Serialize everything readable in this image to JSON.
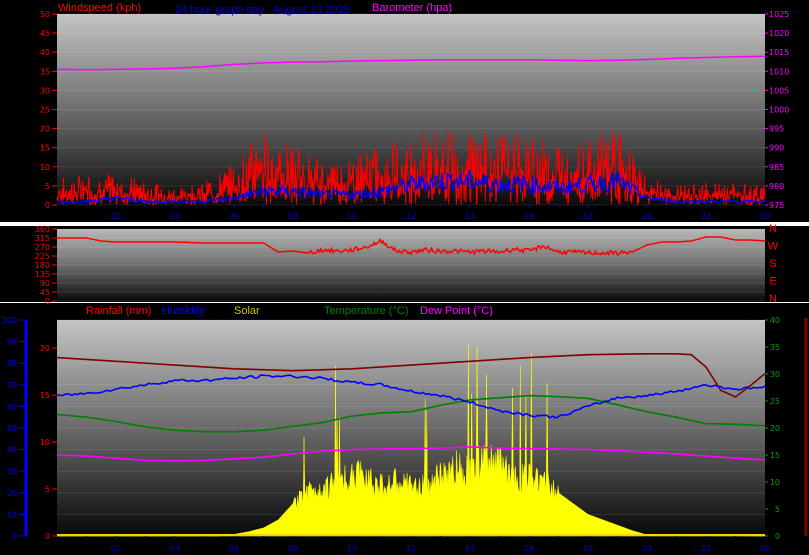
{
  "header": {
    "windspeed_label": "Windspeed (kph)",
    "title": "24 hour graph day : August 13 2025",
    "barometer_label": "Barometer (hpa)"
  },
  "bottom_legend": {
    "rainfall": "Rainfall (mm)",
    "humidity": "Humidity",
    "solar": "Solar",
    "temperature": "Temperature (°C)",
    "dewpoint": "Dew Point (°C)"
  },
  "colors": {
    "wind": "#ff0000",
    "gust": "#ff0000",
    "barometer": "#ff00ff",
    "direction": "#ff0000",
    "humidity": "#0000ff",
    "solar": "#ffff00",
    "temperature": "#008000",
    "dewpoint": "#ff00ff",
    "rainfall": "#ff0000",
    "maroon": "#800000",
    "title": "#0000cc"
  },
  "chart_data": [
    {
      "type": "line",
      "title": "24 hour graph day : August 13 2025",
      "x_ticks": [
        "02",
        "04",
        "06",
        "08",
        "10",
        "12",
        "14",
        "16",
        "18",
        "20",
        "22",
        "00"
      ],
      "xlim": [
        0,
        24
      ],
      "y_left_label": "Windspeed (kph)",
      "y_left_ticks": [
        "0",
        "5",
        "10",
        "15",
        "20",
        "25",
        "30",
        "35",
        "40",
        "45",
        "50"
      ],
      "ylim_left": [
        0,
        50
      ],
      "y_right_label": "Barometer (hpa)",
      "y_right_ticks": [
        "975",
        "980",
        "985",
        "990",
        "995",
        "1000",
        "1005",
        "1010",
        "1015",
        "1020",
        "1025"
      ],
      "ylim_right": [
        975,
        1025
      ],
      "series": [
        {
          "name": "Barometer (hpa)",
          "axis": "right",
          "x": [
            0,
            1,
            2,
            3,
            4,
            5,
            6,
            7,
            8,
            9,
            10,
            11,
            12,
            13,
            14,
            15,
            16,
            17,
            18,
            19,
            20,
            21,
            22,
            23,
            24
          ],
          "values": [
            1010.5,
            1010.4,
            1010.5,
            1010.6,
            1010.8,
            1011.2,
            1011.8,
            1012.2,
            1012.4,
            1012.5,
            1012.7,
            1012.8,
            1012.9,
            1013,
            1013,
            1013,
            1013,
            1012.9,
            1012.8,
            1012.9,
            1013.1,
            1013.4,
            1013.6,
            1013.8,
            1013.9
          ]
        },
        {
          "name": "Windspeed (kph)",
          "axis": "left",
          "x": [
            0,
            1,
            2,
            3,
            4,
            5,
            6,
            7,
            8,
            9,
            10,
            11,
            12,
            13,
            14,
            15,
            16,
            17,
            18,
            19,
            20,
            21,
            22,
            23,
            24
          ],
          "values": [
            1,
            1,
            2,
            1,
            1,
            1,
            2,
            4,
            4,
            3,
            3,
            4,
            6,
            7,
            7,
            6,
            6,
            5,
            6,
            7,
            2,
            1,
            1,
            1,
            1
          ]
        },
        {
          "name": "Wind gust",
          "axis": "left",
          "x": [
            0,
            1,
            2,
            3,
            4,
            5,
            6,
            7,
            8,
            9,
            10,
            11,
            12,
            13,
            14,
            15,
            16,
            17,
            18,
            19,
            20,
            21,
            22,
            23,
            24
          ],
          "values": [
            7,
            8,
            9,
            6,
            5,
            6,
            11,
            20,
            16,
            12,
            13,
            16,
            19,
            20,
            19,
            19,
            18,
            17,
            18,
            20,
            7,
            5,
            6,
            6,
            5
          ]
        }
      ]
    },
    {
      "type": "line",
      "x_ticks": [
        "02",
        "04",
        "06",
        "08",
        "10",
        "12",
        "14",
        "16",
        "18",
        "20",
        "22",
        "00"
      ],
      "xlim": [
        0,
        24
      ],
      "y_ticks": [
        "0",
        "45",
        "90",
        "135",
        "180",
        "225",
        "270",
        "315",
        "360"
      ],
      "ylim": [
        0,
        360
      ],
      "direction_labels": [
        "N",
        "W",
        "S",
        "E",
        "N"
      ],
      "series": [
        {
          "name": "Wind direction",
          "x": [
            0,
            0.5,
            1,
            1.5,
            2,
            3,
            4,
            5,
            6,
            7,
            7.5,
            8,
            8.5,
            9,
            9.5,
            10,
            10.5,
            11,
            11.5,
            12,
            12.5,
            13,
            13.5,
            14,
            14.5,
            15,
            15.5,
            16,
            16.5,
            17,
            17.5,
            18,
            18.5,
            19,
            19.5,
            20,
            20.5,
            21,
            21.5,
            22,
            22.5,
            23,
            23.5,
            24
          ],
          "values": [
            315,
            315,
            315,
            300,
            295,
            295,
            295,
            290,
            290,
            290,
            245,
            250,
            240,
            255,
            250,
            255,
            270,
            300,
            250,
            245,
            255,
            250,
            250,
            245,
            250,
            245,
            260,
            250,
            275,
            245,
            245,
            240,
            240,
            240,
            245,
            280,
            295,
            295,
            300,
            320,
            320,
            305,
            305,
            300
          ]
        }
      ]
    },
    {
      "type": "line",
      "x_ticks": [
        "02",
        "04",
        "06",
        "08",
        "10",
        "12",
        "14",
        "16",
        "18",
        "20",
        "22",
        "00"
      ],
      "xlim": [
        0,
        24
      ],
      "y_humidity_ticks": [
        "0",
        "10",
        "20",
        "30",
        "40",
        "50",
        "60",
        "70",
        "80",
        "90",
        "100"
      ],
      "ylim_humidity": [
        0,
        100
      ],
      "y_rain_ticks": [
        "0",
        "5",
        "10",
        "15",
        "20"
      ],
      "ylim_rain": [
        0,
        23
      ],
      "y_temp_ticks": [
        "0",
        "5",
        "10",
        "15",
        "20",
        "25",
        "30",
        "35",
        "40"
      ],
      "ylim_temp": [
        0,
        40
      ],
      "series": [
        {
          "name": "Humidity",
          "axis": "humidity",
          "x": [
            0,
            1,
            2,
            3,
            4,
            5,
            6,
            7,
            8,
            9,
            10,
            11,
            12,
            13,
            14,
            15,
            16,
            17,
            18,
            19,
            20,
            21,
            22,
            23,
            24
          ],
          "values": [
            65,
            66,
            68,
            70,
            72,
            72,
            73,
            74,
            74,
            73,
            71,
            70,
            67,
            65,
            62,
            58,
            56,
            55,
            60,
            64,
            65,
            67,
            70,
            68,
            69
          ]
        },
        {
          "name": "Temperature (°C)",
          "axis": "temp",
          "x": [
            0,
            1,
            2,
            3,
            4,
            5,
            6,
            7,
            8,
            9,
            10,
            11,
            12,
            13,
            14,
            15,
            16,
            17,
            18,
            19,
            20,
            21,
            22,
            23,
            24
          ],
          "values": [
            22.5,
            22,
            21.2,
            20.2,
            19.6,
            19.3,
            19.3,
            19.6,
            20.3,
            21,
            22.2,
            22.8,
            23,
            24.2,
            25.2,
            25.6,
            26,
            25.8,
            25.5,
            24.3,
            23,
            22,
            20.8,
            20.7,
            20.4
          ]
        },
        {
          "name": "Dew Point (°C)",
          "axis": "temp",
          "x": [
            0,
            1,
            2,
            3,
            4,
            5,
            6,
            7,
            8,
            9,
            10,
            11,
            12,
            13,
            14,
            15,
            16,
            17,
            18,
            19,
            20,
            21,
            22,
            23,
            24
          ],
          "values": [
            15,
            14.8,
            14.4,
            14,
            13.9,
            14,
            14.3,
            14.6,
            15.2,
            15.7,
            16,
            16.1,
            16.2,
            16.3,
            16.5,
            16.3,
            16.2,
            16.1,
            16,
            15.8,
            15.5,
            15.2,
            14.8,
            14.4,
            14.1
          ]
        },
        {
          "name": "Solar",
          "axis": "temp",
          "x": [
            0,
            5.5,
            6,
            6.5,
            7,
            7.5,
            8,
            8.5,
            9,
            9.5,
            10,
            10.5,
            11,
            11.5,
            12,
            12.5,
            13,
            13.5,
            14,
            14.5,
            15,
            15.5,
            16,
            16.5,
            17,
            17.5,
            18,
            18.5,
            19,
            19.5,
            20,
            24
          ],
          "values": [
            0,
            0,
            0.3,
            0.8,
            1.5,
            3,
            6,
            9,
            10,
            11,
            12,
            13,
            10,
            11,
            10,
            10,
            12,
            14,
            14,
            15,
            15,
            12,
            12,
            12,
            8,
            6,
            4,
            3,
            2,
            1,
            0.2,
            0
          ]
        },
        {
          "name": "Maroon trace",
          "axis": "rain",
          "x": [
            0,
            2,
            4,
            6,
            8,
            10,
            12,
            14,
            16,
            18,
            20,
            21,
            21.5,
            22,
            22.5,
            23,
            23.5,
            24
          ],
          "values": [
            19,
            18.6,
            18.2,
            17.8,
            17.6,
            17.8,
            18.2,
            18.6,
            19,
            19.3,
            19.4,
            19.4,
            19.3,
            18,
            15.5,
            14.8,
            16,
            17.3
          ]
        }
      ]
    }
  ]
}
